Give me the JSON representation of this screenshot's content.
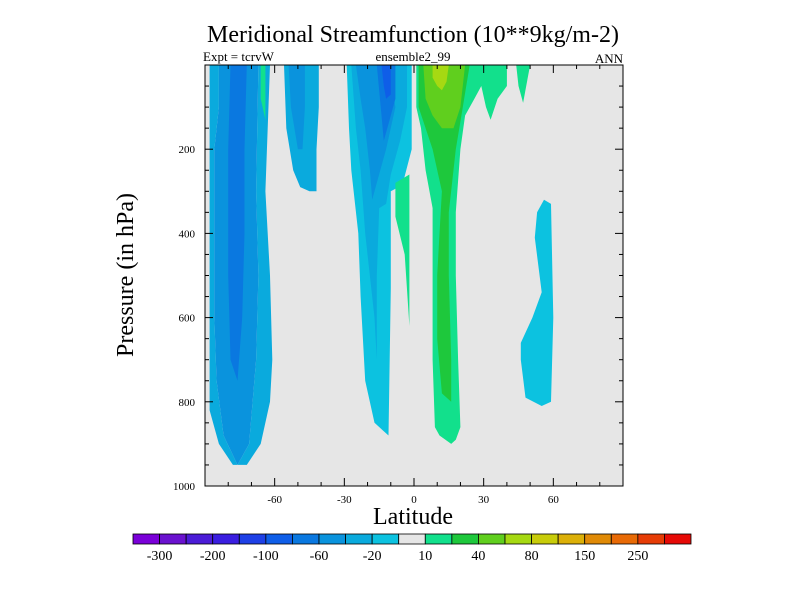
{
  "chart_data": {
    "type": "contour",
    "title": "Meridional Streamfunction (10**9kg/m-2)",
    "subtitle_left": "Expt = tcrvW",
    "subtitle_center": "ensemble2_99",
    "subtitle_right": "ANN",
    "xlabel": "Latitude",
    "ylabel": "Pressure (in hPa)",
    "xlim": [
      -90,
      90
    ],
    "ylim": [
      0,
      1000
    ],
    "y_reversed": true,
    "x_ticks": [
      -60,
      -30,
      0,
      30,
      60
    ],
    "x_tick_labels": [
      "-60",
      "-30",
      "0",
      "30",
      "60"
    ],
    "y_ticks": [
      200,
      400,
      600,
      800,
      1000
    ],
    "y_tick_labels": [
      "200",
      "400",
      "600",
      "800",
      "1000"
    ],
    "background_color": "#e6e6e6",
    "colorbar": {
      "colors": [
        "#7a00d8",
        "#6a12cf",
        "#4b1cd7",
        "#3a1ee0",
        "#1e40e6",
        "#0f5ee8",
        "#0a78e0",
        "#0a93dd",
        "#0aaadd",
        "#0cc2e0",
        "#e6e6e6",
        "#12e08c",
        "#1ec83c",
        "#60cf1e",
        "#a6d912",
        "#c8cc0a",
        "#dcb008",
        "#e08a06",
        "#e86a06",
        "#e63c06",
        "#e60a06"
      ],
      "labels": [
        "-300",
        "-200",
        "-100",
        "-60",
        "-20",
        "10",
        "40",
        "80",
        "150",
        "250"
      ]
    },
    "regions": [
      {
        "color": "#0aaadd",
        "poly": [
          [
            -88,
            0
          ],
          [
            -84,
            0
          ],
          [
            -84,
            100
          ],
          [
            -86,
            200
          ],
          [
            -86,
            600
          ],
          [
            -85,
            750
          ],
          [
            -82,
            880
          ],
          [
            -76,
            950
          ],
          [
            -71,
            900
          ],
          [
            -68,
            700
          ],
          [
            -67,
            500
          ],
          [
            -68,
            300
          ],
          [
            -67,
            0
          ],
          [
            -62,
            0
          ],
          [
            -63,
            150
          ],
          [
            -64,
            300
          ],
          [
            -62,
            500
          ],
          [
            -61,
            700
          ],
          [
            -62,
            800
          ],
          [
            -66,
            900
          ],
          [
            -72,
            950
          ],
          [
            -78,
            950
          ],
          [
            -84,
            900
          ],
          [
            -88,
            820
          ]
        ]
      },
      {
        "color": "#0a93dd",
        "poly": [
          [
            -84,
            0
          ],
          [
            -67,
            0
          ],
          [
            -68,
            300
          ],
          [
            -67,
            500
          ],
          [
            -68,
            700
          ],
          [
            -71,
            900
          ],
          [
            -76,
            950
          ],
          [
            -82,
            880
          ],
          [
            -85,
            750
          ],
          [
            -86,
            600
          ],
          [
            -86,
            200
          ],
          [
            -84,
            100
          ]
        ]
      },
      {
        "color": "#0a78e0",
        "poly": [
          [
            -79,
            0
          ],
          [
            -72,
            0
          ],
          [
            -73,
            200
          ],
          [
            -73,
            400
          ],
          [
            -74,
            600
          ],
          [
            -76,
            750
          ],
          [
            -79,
            700
          ],
          [
            -80,
            500
          ],
          [
            -80,
            200
          ]
        ]
      },
      {
        "color": "#12e08c",
        "poly": [
          [
            -66,
            0
          ],
          [
            -64,
            0
          ],
          [
            -64,
            130
          ],
          [
            -66,
            80
          ]
        ]
      },
      {
        "color": "#0aaadd",
        "poly": [
          [
            -56,
            0
          ],
          [
            -41,
            0
          ],
          [
            -41,
            100
          ],
          [
            -42,
            200
          ],
          [
            -42,
            300
          ],
          [
            -45,
            300
          ],
          [
            -49,
            290
          ],
          [
            -52,
            250
          ],
          [
            -55,
            150
          ]
        ]
      },
      {
        "color": "#0a93dd",
        "poly": [
          [
            -54,
            0
          ],
          [
            -47,
            0
          ],
          [
            -47,
            100
          ],
          [
            -48,
            200
          ],
          [
            -50,
            200
          ],
          [
            -53,
            100
          ]
        ]
      },
      {
        "color": "#0cc2e0",
        "poly": [
          [
            -29,
            0
          ],
          [
            -1,
            0
          ],
          [
            -1,
            200
          ],
          [
            -5,
            285
          ],
          [
            -10,
            300
          ],
          [
            -10,
            530
          ],
          [
            -11,
            880
          ],
          [
            -17,
            850
          ],
          [
            -21,
            750
          ],
          [
            -23,
            550
          ],
          [
            -24,
            400
          ],
          [
            -27,
            250
          ],
          [
            -28,
            150
          ]
        ]
      },
      {
        "color": "#0aaadd",
        "poly": [
          [
            -27,
            0
          ],
          [
            -3,
            0
          ],
          [
            -3,
            100
          ],
          [
            -6,
            180
          ],
          [
            -10,
            260
          ],
          [
            -12,
            330
          ],
          [
            -15,
            340
          ],
          [
            -16,
            500
          ],
          [
            -16,
            700
          ],
          [
            -17,
            600
          ],
          [
            -21,
            400
          ],
          [
            -23,
            250
          ],
          [
            -25,
            150
          ]
        ]
      },
      {
        "color": "#0a93dd",
        "poly": [
          [
            -25,
            0
          ],
          [
            -11,
            0
          ],
          [
            -8,
            100
          ],
          [
            -12,
            200
          ],
          [
            -16,
            280
          ],
          [
            -18,
            320
          ],
          [
            -19,
            250
          ],
          [
            -21,
            150
          ],
          [
            -23,
            80
          ]
        ]
      },
      {
        "color": "#0a78e0",
        "poly": [
          [
            -16,
            0
          ],
          [
            -8,
            0
          ],
          [
            -8,
            80
          ],
          [
            -11,
            140
          ],
          [
            -13,
            180
          ],
          [
            -14,
            120
          ]
        ]
      },
      {
        "color": "#0f5ee8",
        "poly": [
          [
            -14,
            0
          ],
          [
            -10,
            0
          ],
          [
            -10,
            70
          ],
          [
            -12,
            80
          ],
          [
            -13,
            50
          ]
        ]
      },
      {
        "color": "#12e08c",
        "poly": [
          [
            -8,
            280
          ],
          [
            -2,
            260
          ],
          [
            -2,
            620
          ],
          [
            -4,
            450
          ],
          [
            -8,
            360
          ]
        ]
      },
      {
        "color": "#12e08c",
        "poly": [
          [
            1,
            0
          ],
          [
            40,
            0
          ],
          [
            40,
            50
          ],
          [
            36,
            80
          ],
          [
            33,
            130
          ],
          [
            31,
            100
          ],
          [
            29,
            50
          ],
          [
            26,
            80
          ],
          [
            22,
            120
          ],
          [
            20,
            200
          ],
          [
            18,
            350
          ],
          [
            18,
            500
          ],
          [
            19,
            700
          ],
          [
            20,
            860
          ],
          [
            18,
            890
          ],
          [
            16,
            900
          ],
          [
            11,
            880
          ],
          [
            9,
            860
          ],
          [
            8,
            700
          ],
          [
            8,
            500
          ],
          [
            8,
            340
          ],
          [
            5,
            250
          ],
          [
            3,
            150
          ],
          [
            1,
            100
          ]
        ]
      },
      {
        "color": "#1ec83c",
        "poly": [
          [
            2,
            0
          ],
          [
            24,
            0
          ],
          [
            21,
            100
          ],
          [
            18,
            200
          ],
          [
            15,
            350
          ],
          [
            15,
            500
          ],
          [
            16,
            700
          ],
          [
            16,
            800
          ],
          [
            12,
            780
          ],
          [
            10,
            650
          ],
          [
            10,
            500
          ],
          [
            11,
            400
          ],
          [
            12,
            300
          ],
          [
            8,
            200
          ],
          [
            5,
            150
          ],
          [
            2,
            100
          ]
        ]
      },
      {
        "color": "#60cf1e",
        "poly": [
          [
            4,
            0
          ],
          [
            22,
            0
          ],
          [
            20,
            100
          ],
          [
            17,
            150
          ],
          [
            12,
            150
          ],
          [
            8,
            120
          ],
          [
            5,
            80
          ]
        ]
      },
      {
        "color": "#a6d912",
        "poly": [
          [
            8,
            0
          ],
          [
            15,
            0
          ],
          [
            14,
            40
          ],
          [
            12,
            60
          ],
          [
            10,
            50
          ],
          [
            8,
            30
          ]
        ]
      },
      {
        "color": "#12e08c",
        "poly": [
          [
            44,
            0
          ],
          [
            50,
            0
          ],
          [
            47,
            90
          ],
          [
            45,
            50
          ]
        ]
      },
      {
        "color": "#0cc2e0",
        "poly": [
          [
            55,
            540
          ],
          [
            52,
            410
          ],
          [
            53,
            350
          ],
          [
            56,
            320
          ],
          [
            59,
            330
          ],
          [
            60,
            600
          ],
          [
            59,
            800
          ],
          [
            55,
            810
          ],
          [
            48,
            790
          ],
          [
            46,
            700
          ],
          [
            46,
            660
          ],
          [
            51,
            600
          ]
        ]
      }
    ]
  }
}
